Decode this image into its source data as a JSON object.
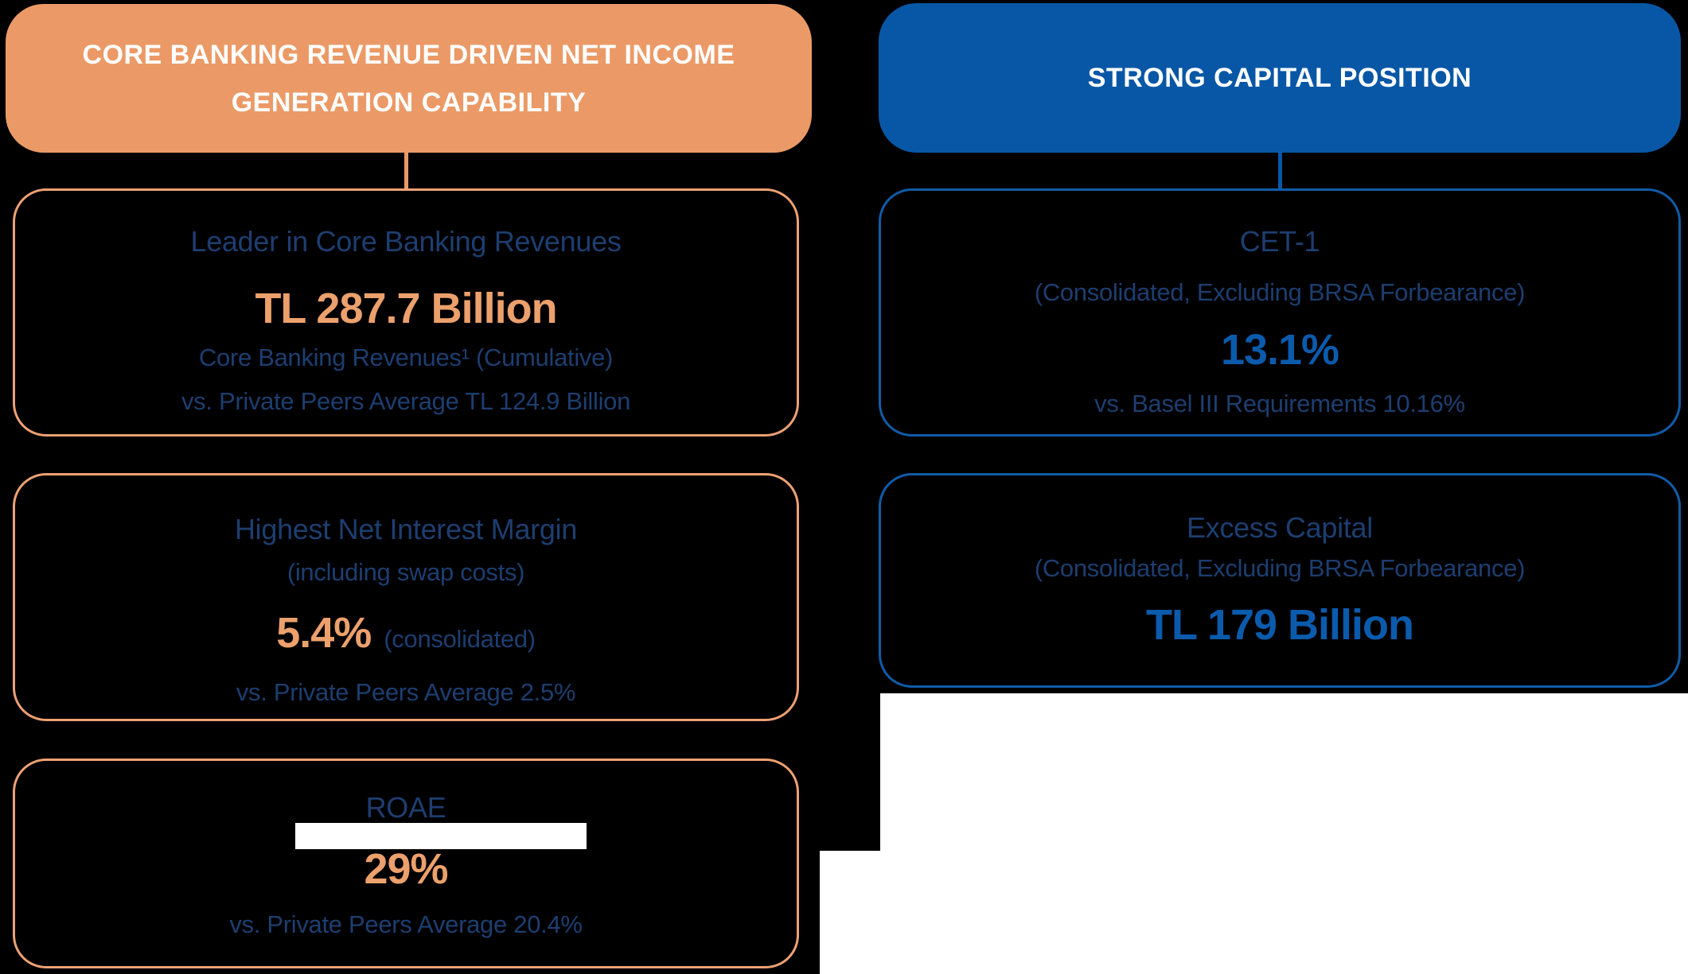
{
  "colors": {
    "background": "#000000",
    "orange_fill": "#EB9A67",
    "orange_value_text": "#ECA06C",
    "blue_fill": "#0857A6",
    "blue_value_text": "#0B5BAD",
    "navy_text": "#1D3E70",
    "white": "#FFFFFF"
  },
  "left_column": {
    "header": {
      "line1": "CORE BANKING REVENUE DRIVEN NET INCOME",
      "line2": "GENERATION CAPABILITY"
    },
    "box1": {
      "title": "Leader in Core Banking Revenues",
      "value": "TL 287.7 Billion",
      "caption1": "Core Banking Revenues¹ (Cumulative)",
      "caption2": "vs. Private Peers Average TL 124.9 Billion"
    },
    "box2": {
      "title": "Highest Net Interest Margin",
      "subtitle": "(including swap costs)",
      "value": "5.4%",
      "value_note": "(consolidated)",
      "caption": "vs. Private Peers Average 2.5%"
    },
    "box3": {
      "title": "ROAE",
      "value": "29%",
      "caption": "vs. Private Peers Average 20.4%"
    }
  },
  "right_column": {
    "header": {
      "line1": "STRONG CAPITAL POSITION"
    },
    "box1": {
      "title": "CET-1",
      "subtitle": "(Consolidated, Excluding BRSA Forbearance)",
      "value": "13.1%",
      "caption": "vs. Basel III Requirements 10.16%"
    },
    "box2": {
      "title": "Excess Capital",
      "subtitle": "(Consolidated, Excluding BRSA Forbearance)",
      "value": "TL 179 Billion"
    }
  }
}
